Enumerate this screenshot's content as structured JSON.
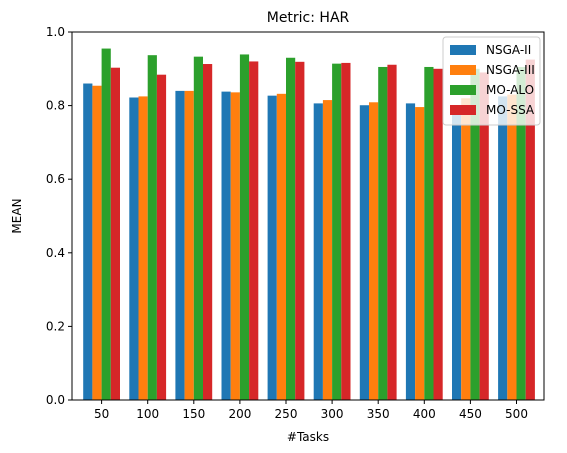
{
  "chart_data": {
    "type": "bar",
    "title": "Metric: HAR",
    "xlabel": "#Tasks",
    "ylabel": "MEAN",
    "ylim": [
      0,
      1.0
    ],
    "yticks": [
      "0.0",
      "0.2",
      "0.4",
      "0.6",
      "0.8",
      "1.0"
    ],
    "grid": false,
    "legend_position": "top-right",
    "categories": [
      "50",
      "100",
      "150",
      "200",
      "250",
      "300",
      "350",
      "400",
      "450",
      "500"
    ],
    "series": [
      {
        "name": "NSGA-II",
        "color": "#1f77b4",
        "values": [
          0.86,
          0.822,
          0.84,
          0.838,
          0.827,
          0.806,
          0.801,
          0.806,
          0.8,
          0.825
        ]
      },
      {
        "name": "NSGA-III",
        "color": "#ff7f0e",
        "values": [
          0.854,
          0.825,
          0.84,
          0.836,
          0.832,
          0.815,
          0.809,
          0.796,
          0.82,
          0.83
        ]
      },
      {
        "name": "MO-ALO",
        "color": "#2ca02c",
        "values": [
          0.955,
          0.937,
          0.933,
          0.939,
          0.93,
          0.914,
          0.905,
          0.905,
          0.9,
          0.905
        ]
      },
      {
        "name": "MO-SSA",
        "color": "#d62728",
        "values": [
          0.903,
          0.884,
          0.913,
          0.92,
          0.919,
          0.916,
          0.911,
          0.9,
          0.89,
          0.925
        ]
      }
    ]
  }
}
